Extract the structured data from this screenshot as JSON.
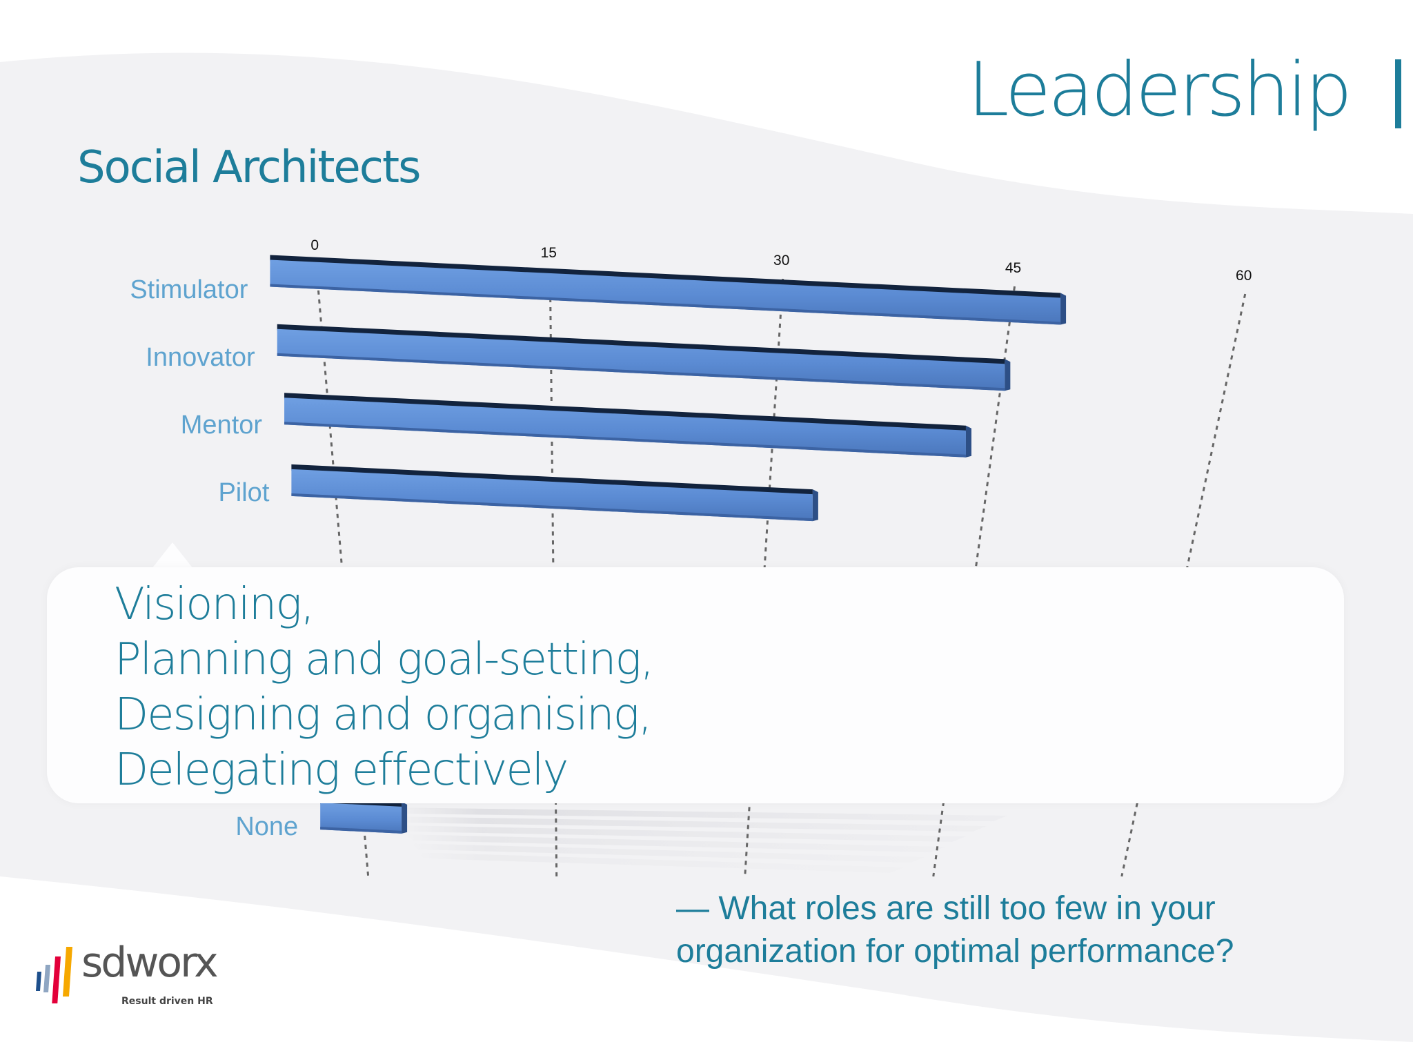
{
  "slide": {
    "title": "Leadership",
    "subtitle": "Social Architects",
    "question": "— What roles are still too few in your organization for optimal performance?"
  },
  "callout": {
    "lines": [
      "Visioning,",
      "Planning and goal-setting,",
      "Designing and organising,",
      "Delegating effectively"
    ]
  },
  "logo": {
    "name": "sdworx",
    "tagline": "Result driven HR"
  },
  "colors": {
    "accent": "#1d7d9a",
    "bar": "#5b8fd8",
    "label": "#5ea3cf"
  },
  "chart_data": {
    "type": "bar",
    "orientation": "horizontal",
    "categories": [
      "Stimulator",
      "Innovator",
      "Mentor",
      "Pilot",
      "None"
    ],
    "values": [
      48,
      45,
      43,
      33,
      3
    ],
    "ticks": [
      "0",
      "15",
      "30",
      "45",
      "60"
    ],
    "xlim": [
      0,
      60
    ],
    "grid": true,
    "title": "",
    "xlabel": "",
    "ylabel": ""
  }
}
